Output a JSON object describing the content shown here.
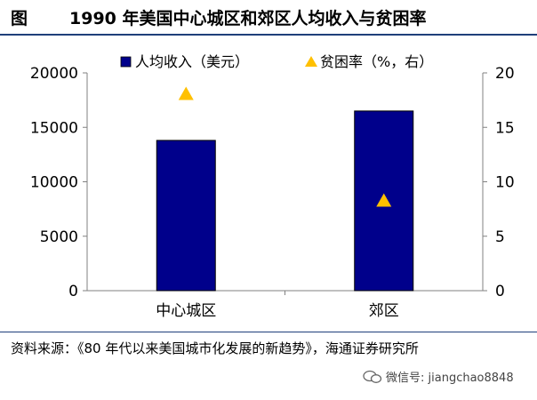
{
  "header": {
    "figure_label": "图",
    "title": "1990 年美国中心城区和郊区人均收入与贫困率"
  },
  "chart_data": {
    "type": "bar",
    "categories": [
      "中心城区",
      "郊区"
    ],
    "series": [
      {
        "name": "人均收入（美元）",
        "kind": "bar",
        "axis": "left",
        "color": "#00008b",
        "values": [
          13800,
          16500
        ]
      },
      {
        "name": "贫困率（%，右）",
        "kind": "marker-triangle",
        "axis": "right",
        "color": "#ffc000",
        "values": [
          18,
          8.2
        ]
      }
    ],
    "y_left": {
      "min": 0,
      "max": 20000,
      "ticks": [
        "0",
        "5000",
        "10000",
        "15000",
        "20000"
      ]
    },
    "y_right": {
      "min": 0,
      "max": 20,
      "ticks": [
        "0",
        "5",
        "10",
        "15",
        "20"
      ]
    },
    "legend_position": "top",
    "grid": false
  },
  "footer": {
    "source": "资料来源：《80 年代以来美国城市化发展的新趋势》，海通证券研究所",
    "watermark": "微信号: jiangchao8848"
  }
}
